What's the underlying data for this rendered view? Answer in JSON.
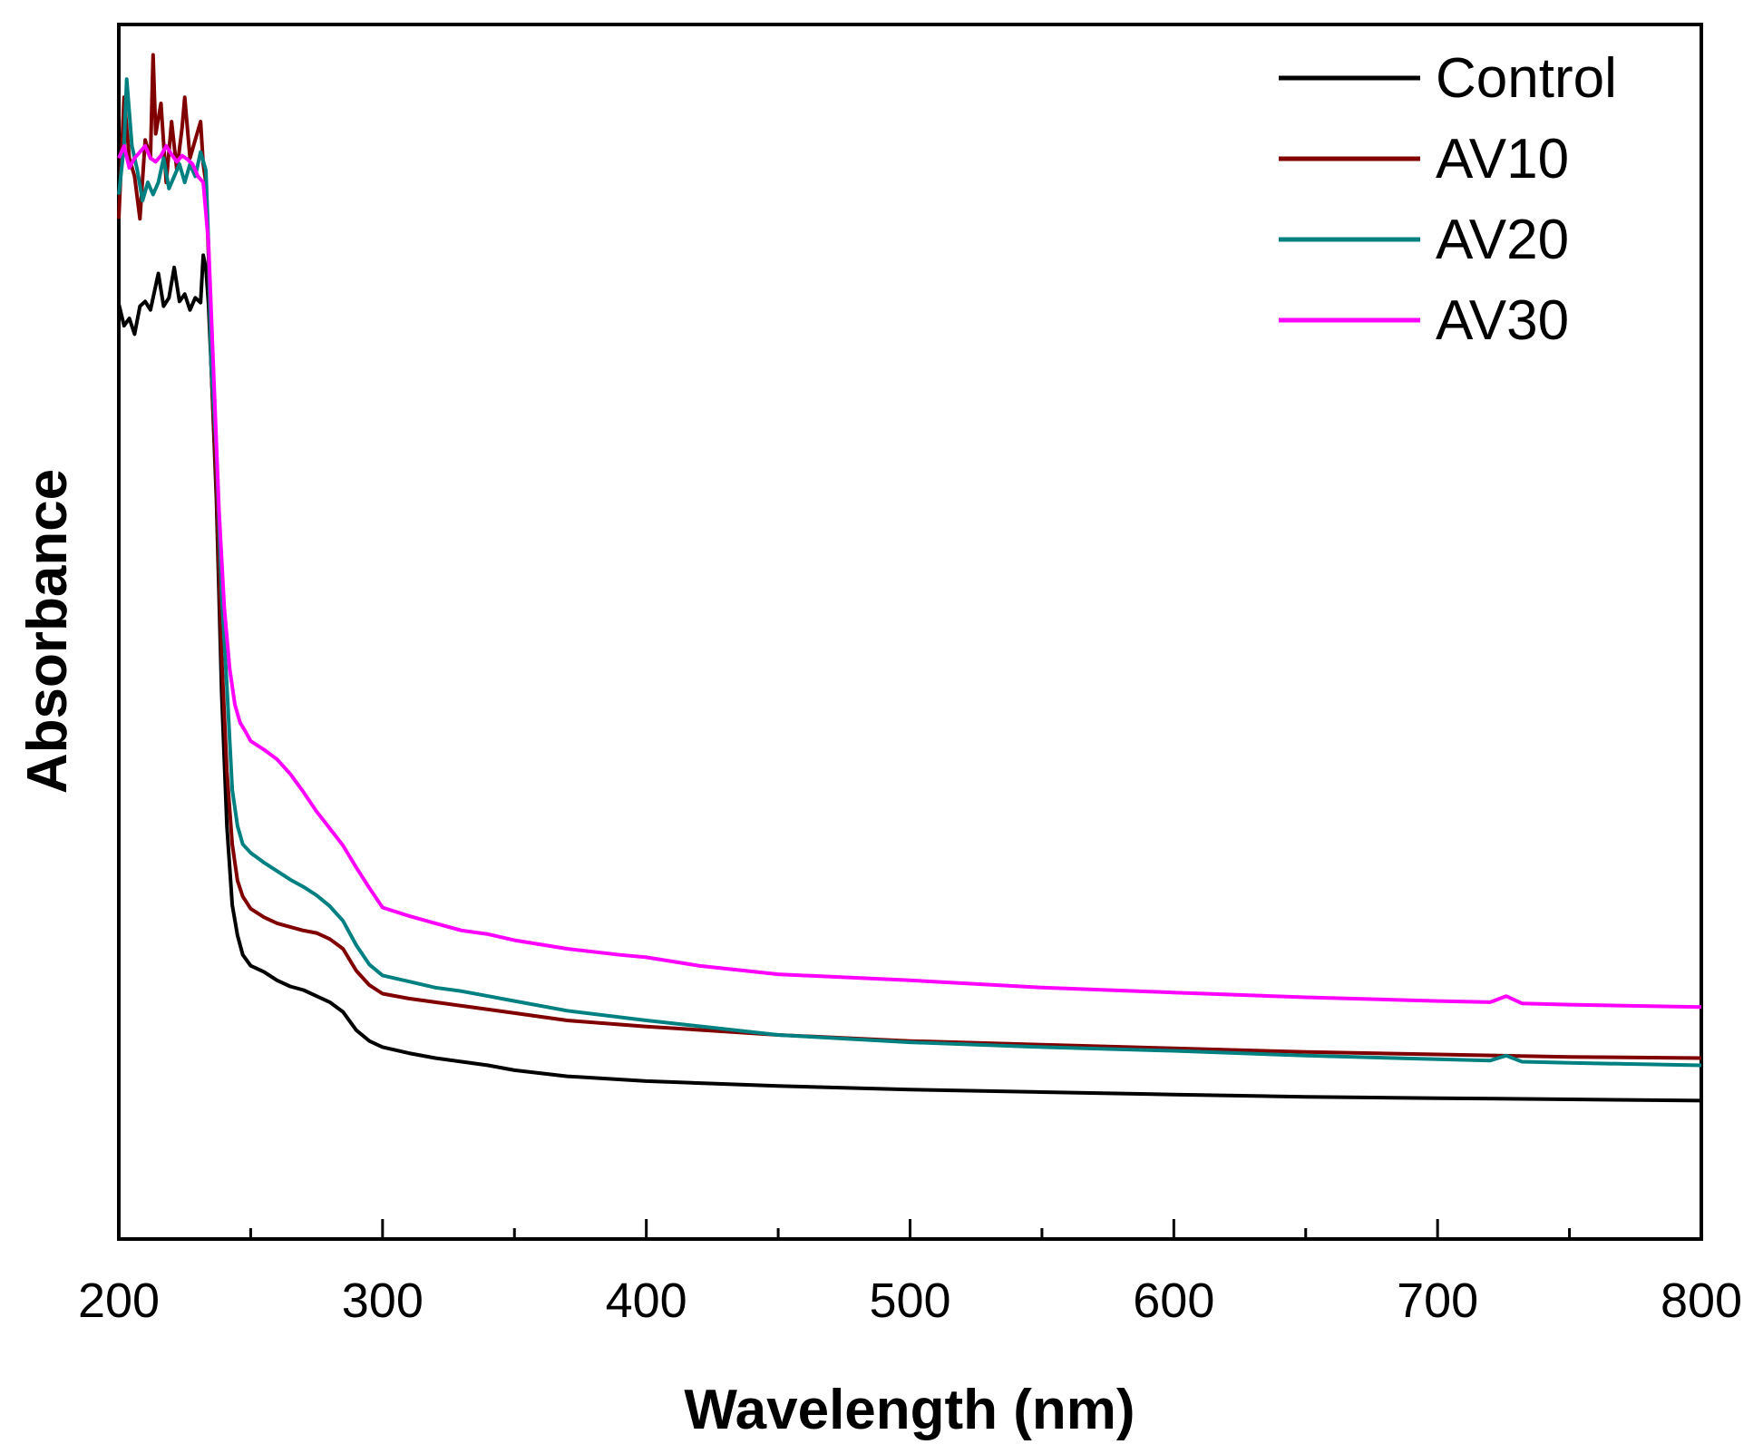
{
  "chart_data": {
    "type": "line",
    "xlabel": "Wavelength (nm)",
    "ylabel": "Absorbance",
    "xlim": [
      200,
      800
    ],
    "ylim": [
      0,
      1
    ],
    "x_ticks": [
      200,
      300,
      400,
      500,
      600,
      700,
      800
    ],
    "x_minor_ticks": [
      250,
      350,
      450,
      550,
      650,
      750
    ],
    "y_tick_labels": false,
    "grid": false,
    "legend": {
      "position": "top-right"
    },
    "series": [
      {
        "name": "Control",
        "color": "#000000",
        "points": [
          [
            200,
            0.77
          ],
          [
            202,
            0.752
          ],
          [
            204,
            0.758
          ],
          [
            206,
            0.745
          ],
          [
            208,
            0.768
          ],
          [
            210,
            0.772
          ],
          [
            212,
            0.765
          ],
          [
            214,
            0.785
          ],
          [
            215,
            0.795
          ],
          [
            217,
            0.768
          ],
          [
            219,
            0.775
          ],
          [
            221,
            0.8
          ],
          [
            223,
            0.772
          ],
          [
            225,
            0.778
          ],
          [
            227,
            0.765
          ],
          [
            229,
            0.775
          ],
          [
            231,
            0.771
          ],
          [
            232,
            0.81
          ],
          [
            233,
            0.8
          ],
          [
            234,
            0.77
          ],
          [
            235,
            0.72
          ],
          [
            237,
            0.61
          ],
          [
            239,
            0.45
          ],
          [
            241,
            0.34
          ],
          [
            243,
            0.275
          ],
          [
            245,
            0.25
          ],
          [
            247,
            0.234
          ],
          [
            250,
            0.225
          ],
          [
            255,
            0.22
          ],
          [
            260,
            0.213
          ],
          [
            265,
            0.208
          ],
          [
            270,
            0.205
          ],
          [
            275,
            0.2
          ],
          [
            280,
            0.195
          ],
          [
            285,
            0.187
          ],
          [
            290,
            0.172
          ],
          [
            295,
            0.163
          ],
          [
            300,
            0.158
          ],
          [
            310,
            0.153
          ],
          [
            320,
            0.149
          ],
          [
            330,
            0.146
          ],
          [
            340,
            0.143
          ],
          [
            350,
            0.139
          ],
          [
            370,
            0.134
          ],
          [
            400,
            0.13
          ],
          [
            450,
            0.126
          ],
          [
            500,
            0.123
          ],
          [
            550,
            0.121
          ],
          [
            600,
            0.119
          ],
          [
            650,
            0.117
          ],
          [
            700,
            0.116
          ],
          [
            750,
            0.115
          ],
          [
            800,
            0.114
          ]
        ]
      },
      {
        "name": "AV10",
        "color": "#800000",
        "points": [
          [
            200,
            0.84
          ],
          [
            202,
            0.94
          ],
          [
            204,
            0.89
          ],
          [
            206,
            0.875
          ],
          [
            208,
            0.84
          ],
          [
            210,
            0.905
          ],
          [
            212,
            0.89
          ],
          [
            213,
            0.975
          ],
          [
            214,
            0.91
          ],
          [
            216,
            0.935
          ],
          [
            218,
            0.87
          ],
          [
            220,
            0.92
          ],
          [
            222,
            0.88
          ],
          [
            224,
            0.915
          ],
          [
            225,
            0.94
          ],
          [
            227,
            0.89
          ],
          [
            229,
            0.905
          ],
          [
            231,
            0.92
          ],
          [
            232,
            0.885
          ],
          [
            233,
            0.87
          ],
          [
            234,
            0.81
          ],
          [
            235,
            0.72
          ],
          [
            237,
            0.62
          ],
          [
            239,
            0.48
          ],
          [
            241,
            0.385
          ],
          [
            243,
            0.325
          ],
          [
            245,
            0.295
          ],
          [
            247,
            0.282
          ],
          [
            250,
            0.272
          ],
          [
            255,
            0.265
          ],
          [
            260,
            0.26
          ],
          [
            265,
            0.257
          ],
          [
            270,
            0.254
          ],
          [
            275,
            0.252
          ],
          [
            280,
            0.247
          ],
          [
            285,
            0.239
          ],
          [
            290,
            0.221
          ],
          [
            295,
            0.209
          ],
          [
            300,
            0.202
          ],
          [
            310,
            0.198
          ],
          [
            320,
            0.195
          ],
          [
            330,
            0.192
          ],
          [
            340,
            0.189
          ],
          [
            350,
            0.186
          ],
          [
            370,
            0.18
          ],
          [
            400,
            0.175
          ],
          [
            450,
            0.168
          ],
          [
            500,
            0.163
          ],
          [
            550,
            0.16
          ],
          [
            600,
            0.157
          ],
          [
            650,
            0.154
          ],
          [
            700,
            0.152
          ],
          [
            750,
            0.15
          ],
          [
            800,
            0.149
          ]
        ]
      },
      {
        "name": "AV20",
        "color": "#008080",
        "points": [
          [
            200,
            0.86
          ],
          [
            202,
            0.9
          ],
          [
            203,
            0.955
          ],
          [
            205,
            0.9
          ],
          [
            207,
            0.88
          ],
          [
            209,
            0.855
          ],
          [
            211,
            0.87
          ],
          [
            213,
            0.86
          ],
          [
            215,
            0.87
          ],
          [
            217,
            0.89
          ],
          [
            219,
            0.865
          ],
          [
            221,
            0.875
          ],
          [
            223,
            0.885
          ],
          [
            225,
            0.87
          ],
          [
            227,
            0.885
          ],
          [
            229,
            0.875
          ],
          [
            231,
            0.895
          ],
          [
            233,
            0.88
          ],
          [
            234,
            0.82
          ],
          [
            235,
            0.72
          ],
          [
            237,
            0.65
          ],
          [
            239,
            0.53
          ],
          [
            241,
            0.455
          ],
          [
            243,
            0.37
          ],
          [
            245,
            0.34
          ],
          [
            247,
            0.325
          ],
          [
            250,
            0.318
          ],
          [
            255,
            0.31
          ],
          [
            260,
            0.303
          ],
          [
            265,
            0.296
          ],
          [
            270,
            0.29
          ],
          [
            275,
            0.283
          ],
          [
            280,
            0.274
          ],
          [
            285,
            0.262
          ],
          [
            290,
            0.242
          ],
          [
            295,
            0.226
          ],
          [
            300,
            0.217
          ],
          [
            310,
            0.212
          ],
          [
            320,
            0.207
          ],
          [
            330,
            0.204
          ],
          [
            340,
            0.2
          ],
          [
            350,
            0.196
          ],
          [
            370,
            0.188
          ],
          [
            400,
            0.18
          ],
          [
            450,
            0.168
          ],
          [
            500,
            0.162
          ],
          [
            550,
            0.158
          ],
          [
            600,
            0.155
          ],
          [
            650,
            0.151
          ],
          [
            700,
            0.148
          ],
          [
            720,
            0.147
          ],
          [
            726,
            0.151
          ],
          [
            732,
            0.146
          ],
          [
            750,
            0.145
          ],
          [
            800,
            0.143
          ]
        ]
      },
      {
        "name": "AV30",
        "color": "#ff00ff",
        "points": [
          [
            200,
            0.89
          ],
          [
            202,
            0.9
          ],
          [
            204,
            0.882
          ],
          [
            206,
            0.89
          ],
          [
            208,
            0.895
          ],
          [
            210,
            0.9
          ],
          [
            212,
            0.89
          ],
          [
            214,
            0.887
          ],
          [
            216,
            0.892
          ],
          [
            218,
            0.9
          ],
          [
            220,
            0.893
          ],
          [
            222,
            0.887
          ],
          [
            224,
            0.892
          ],
          [
            226,
            0.889
          ],
          [
            228,
            0.885
          ],
          [
            230,
            0.875
          ],
          [
            232,
            0.87
          ],
          [
            234,
            0.82
          ],
          [
            236,
            0.71
          ],
          [
            238,
            0.6
          ],
          [
            240,
            0.52
          ],
          [
            242,
            0.47
          ],
          [
            244,
            0.44
          ],
          [
            246,
            0.425
          ],
          [
            248,
            0.418
          ],
          [
            250,
            0.41
          ],
          [
            255,
            0.403
          ],
          [
            260,
            0.395
          ],
          [
            265,
            0.383
          ],
          [
            270,
            0.368
          ],
          [
            275,
            0.352
          ],
          [
            280,
            0.338
          ],
          [
            285,
            0.324
          ],
          [
            290,
            0.306
          ],
          [
            295,
            0.289
          ],
          [
            300,
            0.273
          ],
          [
            310,
            0.266
          ],
          [
            320,
            0.26
          ],
          [
            330,
            0.254
          ],
          [
            340,
            0.251
          ],
          [
            350,
            0.246
          ],
          [
            370,
            0.239
          ],
          [
            390,
            0.234
          ],
          [
            400,
            0.232
          ],
          [
            420,
            0.225
          ],
          [
            450,
            0.218
          ],
          [
            500,
            0.213
          ],
          [
            550,
            0.207
          ],
          [
            600,
            0.203
          ],
          [
            650,
            0.199
          ],
          [
            700,
            0.196
          ],
          [
            720,
            0.195
          ],
          [
            726,
            0.2
          ],
          [
            732,
            0.194
          ],
          [
            750,
            0.193
          ],
          [
            800,
            0.191
          ]
        ]
      }
    ]
  }
}
